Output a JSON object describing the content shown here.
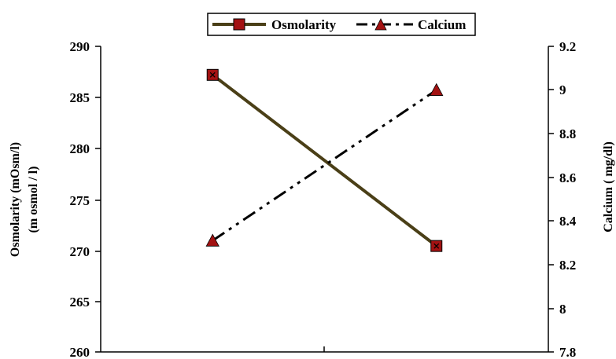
{
  "chart_data": {
    "type": "line",
    "categories": [
      "",
      ""
    ],
    "series": [
      {
        "name": "Osmolarity",
        "axis": "left",
        "values": [
          287.2,
          270.4
        ],
        "color": "#4a3f17",
        "marker": "square",
        "marker_color": "#a31212",
        "line_style": "solid"
      },
      {
        "name": "Calcium",
        "axis": "right",
        "values": [
          8.31,
          9.0
        ],
        "color": "#000000",
        "marker": "triangle",
        "marker_color": "#a31212",
        "line_style": "dash-dot-dot"
      }
    ],
    "y_left": {
      "label_lines": [
        "Osmolarity (mOsm/l)",
        "(m osmol / l)"
      ],
      "ticks": [
        "260",
        "265",
        "270",
        "275",
        "280",
        "285",
        "290"
      ],
      "range": [
        260,
        290
      ]
    },
    "y_right": {
      "label": "Calcium ( mg/dl)",
      "ticks": [
        "7.8",
        "8",
        "8.2",
        "8.4",
        "8.6",
        "8.8",
        "9",
        "9.2"
      ],
      "range": [
        7.8,
        9.2
      ]
    },
    "legend": {
      "position": "top-center",
      "entries": [
        "Osmolarity",
        "Calcium"
      ]
    },
    "grid": false
  }
}
